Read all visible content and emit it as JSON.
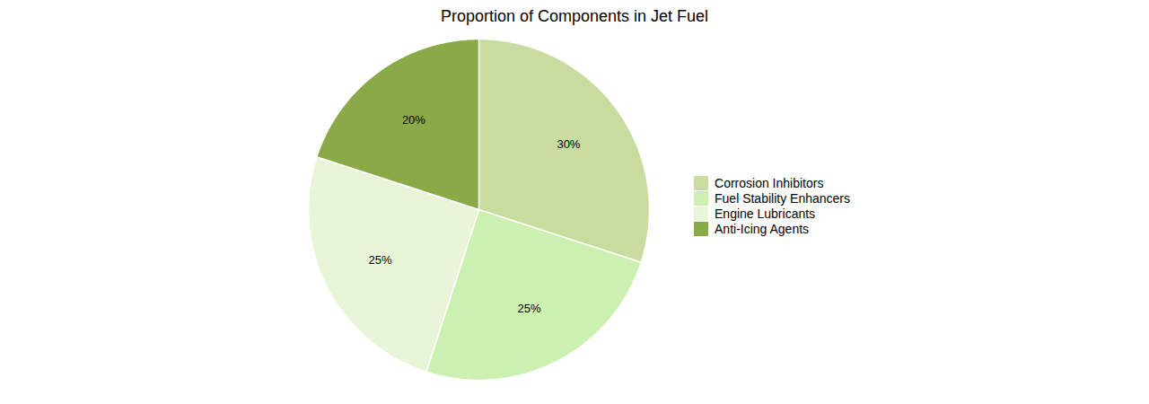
{
  "chart_data": {
    "type": "pie",
    "title": "Proportion of Components in Jet Fuel",
    "categories": [
      "Corrosion Inhibitors",
      "Fuel Stability Enhancers",
      "Engine Lubricants",
      "Anti-Icing Agents"
    ],
    "values": [
      30,
      25,
      25,
      20
    ],
    "value_labels": [
      "30%",
      "25%",
      "25%",
      "20%"
    ],
    "data_labels": true,
    "colors": [
      "#c8dca0",
      "#ccf0b0",
      "#e8f5d8",
      "#8aaa48"
    ],
    "legend": "right"
  }
}
